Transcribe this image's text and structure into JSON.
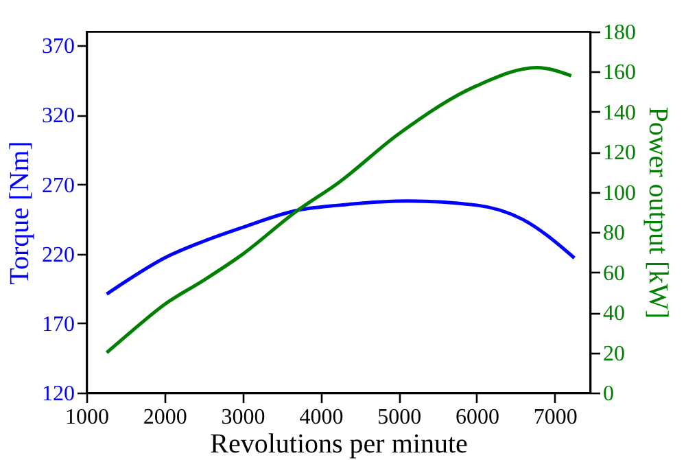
{
  "chart_data": {
    "type": "line",
    "xlabel": "Revolutions per minute",
    "ylabel": "Torque [Nm]",
    "y2label": "Power output [kW]",
    "xlim": [
      1000,
      7450
    ],
    "xticks": [
      1000,
      2000,
      3000,
      4000,
      5000,
      6000,
      7000
    ],
    "ylim": [
      120,
      380
    ],
    "yticks": [
      120,
      170,
      220,
      270,
      320,
      370
    ],
    "y2lim": [
      0,
      180
    ],
    "y2ticks": [
      0,
      20,
      40,
      60,
      80,
      100,
      120,
      140,
      160,
      180
    ],
    "grid": false,
    "series": [
      {
        "color": "#0000ff",
        "x": [
          1260,
          1500,
          2000,
          2500,
          3000,
          3675,
          4240,
          5120,
          6000,
          6580,
          7250
        ],
        "values": [
          191,
          200,
          217,
          229,
          239,
          251,
          255,
          258,
          255,
          245,
          217
        ]
      },
      {
        "color": "#008000",
        "axis": "y2",
        "x": [
          1260,
          1500,
          2000,
          2500,
          3000,
          3675,
          4240,
          5000,
          6000,
          6770,
          7210
        ],
        "values": [
          20,
          28,
          44,
          56,
          69,
          90,
          105,
          129,
          153,
          162,
          158
        ]
      }
    ]
  }
}
